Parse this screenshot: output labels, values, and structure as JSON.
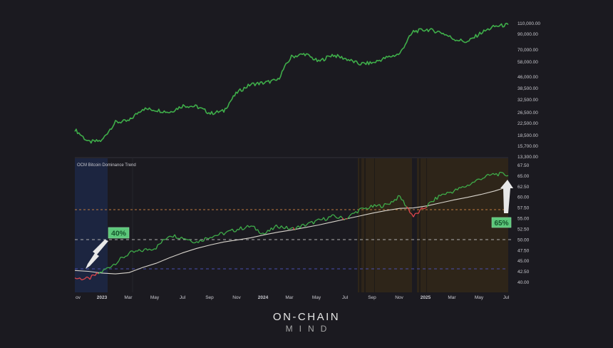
{
  "chart_data": [
    {
      "type": "line",
      "title": "",
      "series_name": "BTC price",
      "scale": "log",
      "ylabel": "",
      "ylim": [
        13300,
        115000
      ],
      "y_ticks": [
        "110,000.00",
        "90,000.00",
        "70,000.00",
        "58,000.00",
        "46,000.00",
        "38,500.00",
        "32,500.00",
        "26,500.00",
        "22,500.00",
        "18,500.00",
        "15,700.00",
        "13,300.00"
      ],
      "x": [
        "2022-11",
        "2022-12",
        "2023-01",
        "2023-02",
        "2023-03",
        "2023-04",
        "2023-05",
        "2023-06",
        "2023-07",
        "2023-08",
        "2023-09",
        "2023-10",
        "2023-11",
        "2023-12",
        "2024-01",
        "2024-02",
        "2024-03",
        "2024-04",
        "2024-05",
        "2024-06",
        "2024-07",
        "2024-08",
        "2024-09",
        "2024-10",
        "2024-11",
        "2024-12",
        "2025-01",
        "2025-02",
        "2025-03",
        "2025-04",
        "2025-05",
        "2025-06",
        "2025-07"
      ],
      "values": [
        20500,
        16800,
        17200,
        23000,
        23500,
        28500,
        28000,
        27000,
        30000,
        29500,
        26500,
        27500,
        37000,
        42000,
        43000,
        45000,
        65000,
        68000,
        60000,
        67000,
        63000,
        58000,
        59000,
        64000,
        68000,
        97000,
        100000,
        96000,
        86000,
        82000,
        95000,
        105000,
        108000
      ],
      "color": "#3fae4a"
    },
    {
      "type": "line",
      "title": "OCM Bitcoin Dominance Trend",
      "ylabel": "",
      "ylim": [
        38.5,
        68.5
      ],
      "y_ticks": [
        "67.50",
        "65.00",
        "62.50",
        "60.00",
        "57.50",
        "55.00",
        "52.50",
        "50.00",
        "47.50",
        "45.00",
        "42.50",
        "40.00"
      ],
      "x_ticks": [
        "ov",
        "2023",
        "Mar",
        "May",
        "Jul",
        "Sep",
        "Nov",
        "2024",
        "Mar",
        "May",
        "Jul",
        "Sep",
        "Nov",
        "2025",
        "Mar",
        "May",
        "Jul"
      ],
      "series": [
        {
          "name": "Dominance",
          "color_up": "#3fae4a",
          "color_down": "#e0474c",
          "x": [
            "2022-11",
            "2022-12",
            "2023-01",
            "2023-02",
            "2023-03",
            "2023-04",
            "2023-05",
            "2023-06",
            "2023-07",
            "2023-08",
            "2023-09",
            "2023-10",
            "2023-11",
            "2023-12",
            "2024-01",
            "2024-02",
            "2024-03",
            "2024-04",
            "2024-05",
            "2024-06",
            "2024-07",
            "2024-08",
            "2024-09",
            "2024-10",
            "2024-11",
            "2024-12",
            "2025-01",
            "2025-02",
            "2025-03",
            "2025-04",
            "2025-05",
            "2025-06",
            "2025-07"
          ],
          "values": [
            41.0,
            40.8,
            42.5,
            44.6,
            46.8,
            47.5,
            48.2,
            51.2,
            50.5,
            49.5,
            50.8,
            51.5,
            52.5,
            53.2,
            51.4,
            53.3,
            52.5,
            53.5,
            54.5,
            55.5,
            55.0,
            57.0,
            57.8,
            58.2,
            60.2,
            55.5,
            58.0,
            60.5,
            61.5,
            62.8,
            64.5,
            65.5,
            65.3
          ]
        },
        {
          "name": "Trend",
          "color": "#d8d4cc",
          "values": [
            42.8,
            42.6,
            42.2,
            42.0,
            42.3,
            43.5,
            44.5,
            45.8,
            47.0,
            48.0,
            48.8,
            49.5,
            50.0,
            50.5,
            51.2,
            51.8,
            52.3,
            52.9,
            53.5,
            54.2,
            54.9,
            55.6,
            56.3,
            56.9,
            57.4,
            57.5,
            58.0,
            58.7,
            59.4,
            60.0,
            60.7,
            61.5,
            62.5
          ]
        }
      ],
      "reference_lines": [
        {
          "value": 57.5,
          "color": "#c07a3e",
          "style": "dashed"
        },
        {
          "value": 50.0,
          "color": "#b0b0b0",
          "style": "dashed"
        },
        {
          "value": 43.5,
          "color": "#4a4fb0",
          "style": "dashed"
        }
      ],
      "shaded_regions": [
        {
          "from": "2022-11",
          "to": "2023-01",
          "color": "#1c2540"
        },
        {
          "from": "2024-08",
          "to": "2024-12",
          "color": "#2e2519"
        },
        {
          "from": "2025-01",
          "to": "2025-07",
          "color": "#2e2519"
        }
      ],
      "annotations": [
        {
          "text": "40%",
          "points_to": "2023-01 ~41.7"
        },
        {
          "text": "65%",
          "points_to": "2025-07 ~65"
        }
      ]
    }
  ],
  "indicator": {
    "label": "OCM Bitcoin Dominance Trend"
  },
  "annotations": {
    "left_label": "40%",
    "right_label": "65%"
  },
  "brand": {
    "line1": "ON-CHAIN",
    "line2": "MIND"
  },
  "colors": {
    "background": "#1b1a20",
    "price_line": "#3fae4a",
    "dominance_up": "#3fae4a",
    "dominance_down": "#e0474c",
    "trend_line": "#d8d4cc",
    "label_bg": "#5cc77a",
    "label_text": "#14532b"
  }
}
